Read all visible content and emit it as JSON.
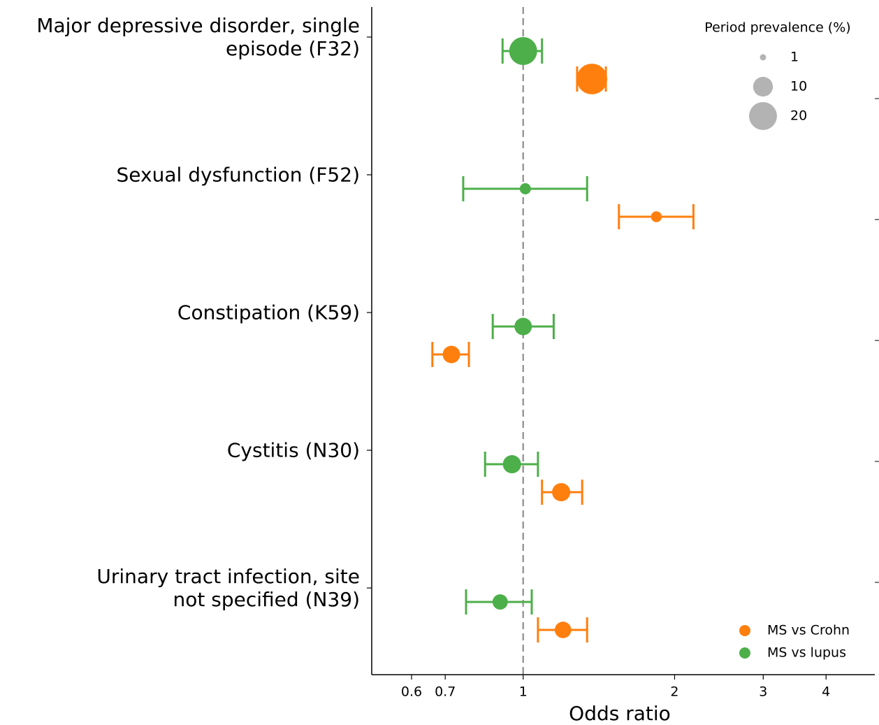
{
  "chart_data": {
    "type": "forest",
    "x_label": "Odds ratio",
    "x_scale": "log",
    "xlim": [
      0.5,
      5
    ],
    "xticks": [
      0.6,
      0.7,
      1,
      2,
      3,
      4
    ],
    "reference_line": 1,
    "categories": [
      "Major depressive disorder, single\nepisode (F32)",
      "Sexual dysfunction (F52)",
      "Constipation (K59)",
      "Cystitis (N30)",
      "Urinary tract infection, site\nnot specified (N39)"
    ],
    "series": [
      {
        "name": "MS vs Crohn",
        "color": "#ff7f0e",
        "values": [
          1.37,
          1.84,
          0.72,
          1.19,
          1.2
        ],
        "lower": [
          1.28,
          1.55,
          0.66,
          1.09,
          1.07
        ],
        "upper": [
          1.46,
          2.18,
          0.78,
          1.31,
          1.34
        ],
        "prevalence": [
          24,
          3,
          7.8,
          8.5,
          7
        ]
      },
      {
        "name": "MS vs lupus",
        "color": "#4daf4a",
        "values": [
          1.0,
          1.01,
          1.0,
          0.95,
          0.9
        ],
        "lower": [
          0.91,
          0.76,
          0.87,
          0.84,
          0.77
        ],
        "upper": [
          1.09,
          1.34,
          1.15,
          1.07,
          1.04
        ],
        "prevalence": [
          20,
          3.2,
          7.8,
          8.5,
          6
        ]
      }
    ],
    "size_legend": {
      "title": "Period prevalence (%)",
      "values": [
        1,
        10,
        20
      ],
      "color": "#b3b3b3"
    },
    "legend": "lower right"
  }
}
